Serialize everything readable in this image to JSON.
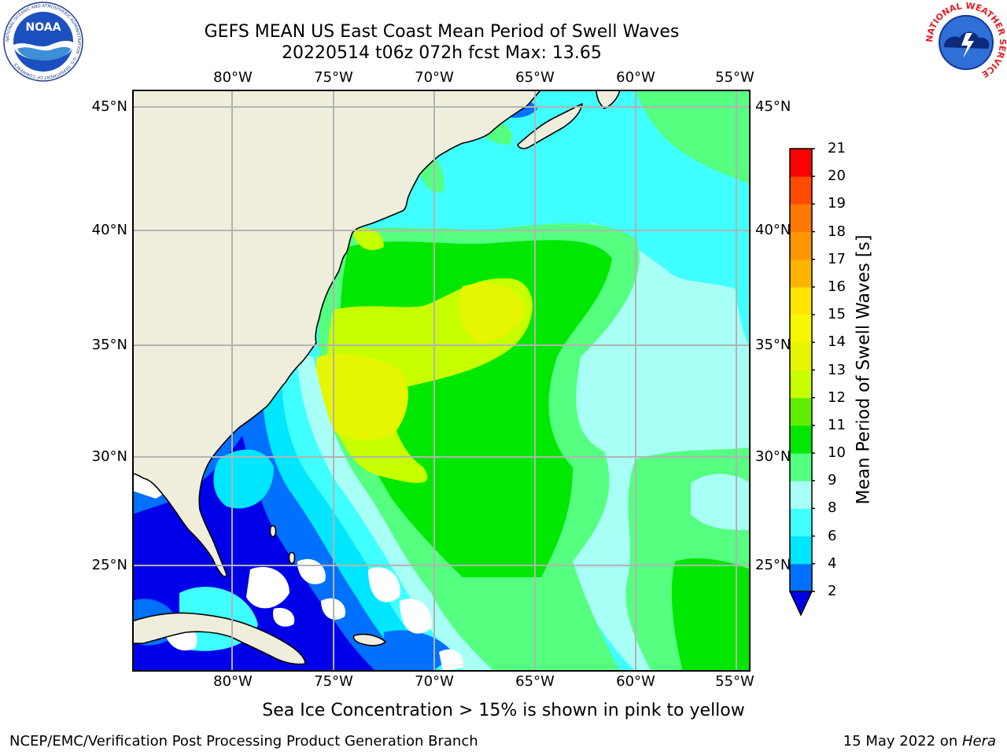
{
  "header": {
    "title_line1": "GEFS MEAN US East Coast Mean Period of Swell Waves",
    "title_line2": "20220514 t06z 072h fcst   Max: 13.65"
  },
  "logos": {
    "noaa": {
      "label": "NOAA",
      "ring_text": "NATIONAL OCEANIC AND ATMOSPHERIC ADMINISTRATION · U.S. DEPARTMENT OF COMMERCE"
    },
    "nws": {
      "ring_text": "NATIONAL WEATHER SERVICE"
    }
  },
  "map": {
    "lon_ticks": [
      "80°W",
      "75°W",
      "70°W",
      "65°W",
      "60°W",
      "55°W"
    ],
    "lat_ticks": [
      "45°N",
      "40°N",
      "35°N",
      "30°N",
      "25°N"
    ],
    "lon_values": [
      -80,
      -75,
      -70,
      -65,
      -60,
      -55
    ],
    "lat_values": [
      45,
      40,
      35,
      30,
      25
    ],
    "extent": {
      "lon_min": -85,
      "lon_max": -54.5,
      "lat_min": 20.5,
      "lat_max": 46
    },
    "colors": {
      "land": "#efeedc",
      "no_data": "#ffffff",
      "grid": "#b3b3b3",
      "coast": "#000000"
    }
  },
  "colorbar": {
    "title": "Mean Period of Swell Waves [s]",
    "levels": [
      "2",
      "4",
      "6",
      "8",
      "9",
      "10",
      "11",
      "12",
      "13",
      "14",
      "15",
      "16",
      "17",
      "18",
      "19",
      "20",
      "21"
    ],
    "colors": [
      "#0070ff",
      "#00e6ff",
      "#40ffff",
      "#a8fff5",
      "#55ff80",
      "#00e800",
      "#60ee00",
      "#c8ff00",
      "#e6f500",
      "#f7f700",
      "#ffe600",
      "#ffb400",
      "#ff9600",
      "#ff7800",
      "#ff4b00",
      "#ff0000"
    ],
    "extend_color": "#0000e8"
  },
  "footer": {
    "ice_note": "Sea Ice Concentration > 15% is shown in pink to yellow",
    "credit": "NCEP/EMC/Verification Post Processing Product Generation Branch",
    "date_prefix": "15 May 2022 on ",
    "host": "Hera"
  }
}
